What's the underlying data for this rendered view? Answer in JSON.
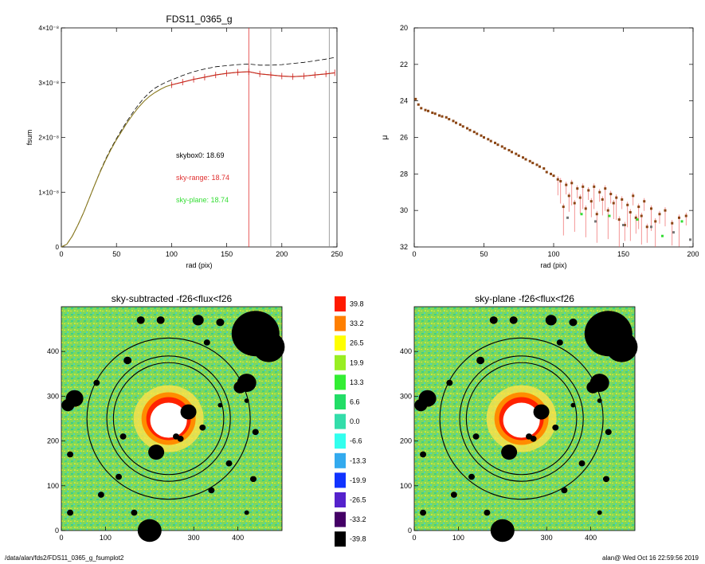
{
  "footer": {
    "left": "/data/alan/fds2/FDS11_0365_g_fsumplot2",
    "right": "alan@  Wed Oct 16 22:59:56 2019"
  },
  "colors": {
    "fsum": "#d12020",
    "model": "#000000",
    "sky_range": "#e03030",
    "sky_plane": "#33dd33",
    "mu_points": "#8b4513"
  },
  "chart_data": [
    {
      "type": "line",
      "title": "FDS11_0365_g",
      "xlabel": "rad (pix)",
      "ylabel": "fsum",
      "xlim": [
        0,
        250
      ],
      "ylim": [
        0,
        4e-08
      ],
      "xticks": [
        "0",
        "50",
        "100",
        "150",
        "200",
        "250"
      ],
      "yticks": [
        "0",
        "1×10⁻⁸",
        "2×10⁻⁸",
        "3×10⁻⁸",
        "4×10⁻⁸"
      ],
      "vlines": [
        {
          "x": 170,
          "color": "#e03030"
        },
        {
          "x": 190,
          "color": "#888888"
        },
        {
          "x": 243,
          "color": "#888888"
        }
      ],
      "annotations": [
        {
          "text": "skybox0: 18.69",
          "color": "#000000"
        },
        {
          "text": "sky-range: 18.74",
          "color": "#e03030"
        },
        {
          "text": "sky-plane: 18.74",
          "color": "#33dd33"
        }
      ],
      "series": [
        {
          "style": "solid-with-errorbars",
          "x": [
            0,
            5,
            10,
            15,
            20,
            25,
            30,
            35,
            40,
            45,
            50,
            55,
            60,
            65,
            70,
            75,
            80,
            85,
            90,
            95,
            100,
            110,
            120,
            130,
            140,
            150,
            160,
            170,
            180,
            190,
            200,
            210,
            220,
            230,
            240,
            248
          ],
          "y": [
            0,
            5e-10,
            2e-09,
            4e-09,
            6.2e-09,
            8.7e-09,
            1.12e-08,
            1.36e-08,
            1.58e-08,
            1.78e-08,
            1.96e-08,
            2.12e-08,
            2.28e-08,
            2.42e-08,
            2.55e-08,
            2.66e-08,
            2.75e-08,
            2.82e-08,
            2.88e-08,
            2.93e-08,
            2.96e-08,
            3.01e-08,
            3.06e-08,
            3.1e-08,
            3.14e-08,
            3.17e-08,
            3.19e-08,
            3.2e-08,
            3.16e-08,
            3.14e-08,
            3.12e-08,
            3.11e-08,
            3.12e-08,
            3.14e-08,
            3.16e-08,
            3.18e-08
          ]
        },
        {
          "style": "dashed",
          "x": [
            0,
            5,
            10,
            15,
            20,
            25,
            30,
            35,
            40,
            45,
            50,
            55,
            60,
            65,
            70,
            75,
            80,
            85,
            90,
            95,
            100,
            110,
            120,
            130,
            140,
            150,
            160,
            170,
            180,
            190,
            200,
            210,
            220,
            230,
            240,
            248
          ],
          "y": [
            0,
            5e-10,
            2e-09,
            4e-09,
            6.2e-09,
            8.7e-09,
            1.12e-08,
            1.37e-08,
            1.6e-08,
            1.8e-08,
            1.98e-08,
            2.15e-08,
            2.31e-08,
            2.46e-08,
            2.6e-08,
            2.72e-08,
            2.82e-08,
            2.9e-08,
            2.96e-08,
            3.01e-08,
            3.05e-08,
            3.13e-08,
            3.2e-08,
            3.25e-08,
            3.29e-08,
            3.31e-08,
            3.33e-08,
            3.34e-08,
            3.32e-08,
            3.32e-08,
            3.33e-08,
            3.35e-08,
            3.37e-08,
            3.4e-08,
            3.43e-08,
            3.46e-08
          ]
        }
      ]
    },
    {
      "type": "scatter",
      "title": "",
      "xlabel": "rad (pix)",
      "ylabel": "μ",
      "xlim": [
        0,
        200
      ],
      "ylim": [
        32,
        20
      ],
      "xticks": [
        "0",
        "50",
        "100",
        "150",
        "200"
      ],
      "yticks": [
        "20",
        "22",
        "24",
        "26",
        "28",
        "30",
        "32"
      ],
      "series": [
        {
          "x": [
            1,
            3,
            5,
            8,
            10,
            13,
            15,
            18,
            20,
            23,
            25,
            28,
            30,
            33,
            35,
            38,
            40,
            43,
            45,
            48,
            50,
            53,
            55,
            58,
            60,
            63,
            65,
            68,
            70,
            73,
            75,
            78,
            80,
            83,
            85,
            88,
            90,
            93,
            95,
            98,
            100,
            103,
            105,
            107,
            109,
            111,
            113,
            115,
            117,
            119,
            121,
            123,
            125,
            127,
            129,
            131,
            133,
            135,
            137,
            139,
            141,
            143,
            145,
            147,
            149,
            151,
            153,
            155,
            157,
            159,
            161,
            163,
            165,
            167,
            170,
            173,
            176,
            180,
            185,
            190,
            195
          ],
          "y": [
            23.9,
            24.2,
            24.4,
            24.5,
            24.55,
            24.65,
            24.7,
            24.8,
            24.85,
            24.9,
            25.0,
            25.1,
            25.2,
            25.3,
            25.4,
            25.5,
            25.6,
            25.7,
            25.8,
            25.9,
            26.0,
            26.1,
            26.2,
            26.3,
            26.4,
            26.5,
            26.6,
            26.7,
            26.8,
            26.9,
            27.0,
            27.1,
            27.2,
            27.3,
            27.4,
            27.5,
            27.6,
            27.7,
            27.9,
            28.0,
            28.1,
            28.3,
            28.4,
            29.8,
            28.6,
            29.2,
            28.5,
            29.6,
            28.8,
            29.3,
            28.7,
            29.9,
            28.9,
            29.5,
            28.7,
            30.2,
            29.0,
            29.4,
            28.8,
            30.0,
            29.1,
            29.6,
            29.3,
            30.5,
            29.4,
            30.8,
            29.7,
            30.1,
            29.2,
            30.4,
            29.8,
            30.3,
            29.5,
            30.9,
            29.9,
            30.6,
            30.2,
            30.0,
            30.7,
            30.4,
            30.3
          ]
        },
        {
          "x": [
            110,
            120,
            130,
            140,
            150,
            160,
            170,
            178,
            186,
            192,
            198
          ],
          "y": [
            30.4,
            30.2,
            30.6,
            30.3,
            30.8,
            30.5,
            30.9,
            31.4,
            31.2,
            30.6,
            31.6
          ]
        }
      ]
    },
    {
      "type": "heatmap",
      "title": "sky-subtracted -f26<flux<f26",
      "xlim": [
        0,
        500
      ],
      "ylim": [
        0,
        500
      ],
      "xticks": [
        "0",
        "100",
        "200",
        "300",
        "400"
      ],
      "yticks": [
        "0",
        "100",
        "200",
        "300",
        "400"
      ],
      "ellipses": [
        {
          "cx": 243,
          "cy": 250,
          "rx": 185,
          "ry": 180
        },
        {
          "cx": 243,
          "cy": 250,
          "rx": 140,
          "ry": 140
        },
        {
          "cx": 243,
          "cy": 250,
          "rx": 125,
          "ry": 125
        }
      ]
    },
    {
      "type": "heatmap",
      "title": "sky-plane -f26<flux<f26",
      "xlim": [
        0,
        500
      ],
      "ylim": [
        0,
        500
      ],
      "xticks": [
        "0",
        "100",
        "200",
        "300",
        "400"
      ],
      "yticks": [
        "0",
        "100",
        "200",
        "300",
        "400"
      ],
      "ellipses": [
        {
          "cx": 243,
          "cy": 250,
          "rx": 185,
          "ry": 180
        },
        {
          "cx": 243,
          "cy": 250,
          "rx": 140,
          "ry": 140
        },
        {
          "cx": 243,
          "cy": 250,
          "rx": 125,
          "ry": 125
        }
      ]
    },
    {
      "type": "colorbar",
      "labels": [
        "39.8",
        "33.2",
        "26.5",
        "19.9",
        "13.3",
        "6.6",
        "0.0",
        "-6.6",
        "-13.3",
        "-19.9",
        "-26.5",
        "-33.2",
        "-39.8"
      ],
      "colors": [
        "#ff1a00",
        "#ff7f00",
        "#ffff00",
        "#99ee22",
        "#33ee33",
        "#22dd66",
        "#33ddaa",
        "#33ffee",
        "#33aaee",
        "#1133ff",
        "#5522cc",
        "#440066",
        "#000000"
      ]
    }
  ]
}
